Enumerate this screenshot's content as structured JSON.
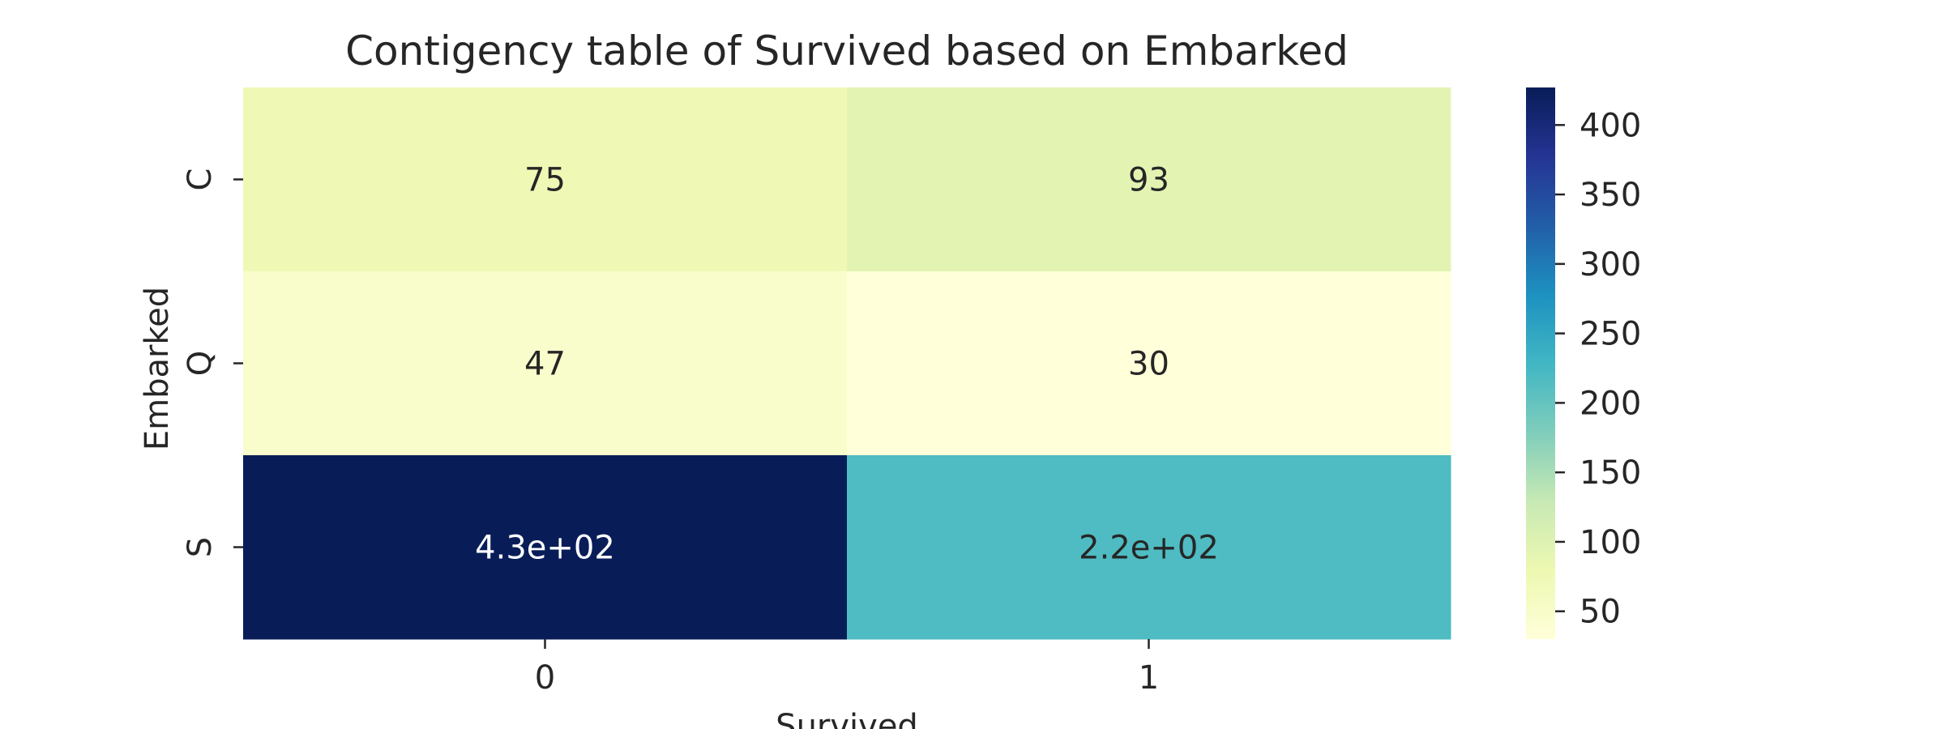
{
  "chart_data": {
    "type": "heatmap",
    "title": "Contigency table of Survived based on Embarked",
    "xlabel": "Survived",
    "ylabel": "Embarked",
    "x_categories": [
      "0",
      "1"
    ],
    "y_categories": [
      "C",
      "Q",
      "S"
    ],
    "values": [
      [
        75,
        93
      ],
      [
        47,
        30
      ],
      [
        427,
        217
      ]
    ],
    "cell_labels": [
      [
        "75",
        "93"
      ],
      [
        "47",
        "30"
      ],
      [
        "4.3e+02",
        "2.2e+02"
      ]
    ],
    "colorbar": {
      "colormap": "YlGnBu",
      "range": [
        30,
        427
      ],
      "ticks": [
        50,
        100,
        150,
        200,
        250,
        300,
        350,
        400
      ],
      "tick_labels": [
        "50",
        "100",
        "150",
        "200",
        "250",
        "300",
        "350",
        "400"
      ]
    },
    "colormap_stops": [
      "#ffffd9",
      "#edf8b1",
      "#c7e9b4",
      "#7fcdbb",
      "#41b6c4",
      "#1d91c0",
      "#225ea8",
      "#253494",
      "#081d58"
    ],
    "grid": false
  }
}
